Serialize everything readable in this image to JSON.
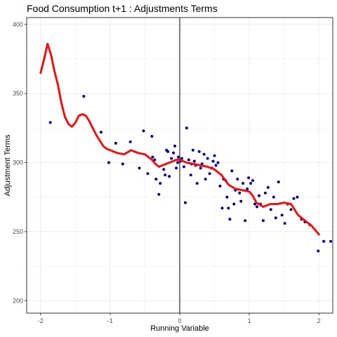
{
  "chart_data": {
    "type": "scatter",
    "title": "Food Consumption t+1 : Adjustments Terms",
    "xlabel": "Running Variable",
    "ylabel": "Adjustment Terms",
    "xlim": [
      -2.2,
      2.2
    ],
    "ylim": [
      191,
      405
    ],
    "x_ticks": [
      -2,
      -1,
      0,
      1,
      2
    ],
    "x_tick_labels": [
      "-2",
      "-1",
      "0",
      "1",
      "2"
    ],
    "y_ticks": [
      200,
      250,
      300,
      350,
      400
    ],
    "y_tick_labels": [
      "200",
      "250",
      "300",
      "350",
      "400"
    ],
    "grid": true,
    "cutoff_x": 0,
    "colors": {
      "points": "#00008b",
      "smooth": "#ee1111",
      "cutoff": "#000000",
      "grid": "#ebebeb",
      "frame": "#333333"
    },
    "series": [
      {
        "kind": "points",
        "x": [
          -1.86,
          -1.38,
          -1.13,
          -1.02,
          -0.92,
          -0.82,
          -0.71,
          -0.58,
          -0.52,
          -0.46,
          -0.4,
          -0.39,
          -0.36,
          -0.34,
          -0.3,
          -0.28,
          -0.23,
          -0.21,
          -0.19,
          -0.17,
          -0.15,
          -0.12,
          -0.09,
          -0.07,
          -0.05,
          -0.03,
          -0.02,
          0.01,
          0.03,
          0.06,
          0.08,
          0.1,
          0.13,
          0.16,
          0.17,
          0.19,
          0.21,
          0.23,
          0.25,
          0.28,
          0.3,
          0.32,
          0.35,
          0.37,
          0.4,
          0.43,
          0.46,
          0.48,
          0.5,
          0.52,
          0.55,
          0.58,
          0.61,
          0.63,
          0.66,
          0.68,
          0.7,
          0.72,
          0.75,
          0.78,
          0.8,
          0.83,
          0.86,
          0.88,
          0.91,
          0.94,
          0.97,
          0.99,
          1.02,
          1.05,
          1.08,
          1.11,
          1.14,
          1.16,
          1.2,
          1.23,
          1.27,
          1.31,
          1.35,
          1.38,
          1.42,
          1.47,
          1.51,
          1.55,
          1.6,
          1.64,
          1.69,
          1.75,
          1.8,
          1.87,
          1.99,
          2.07,
          2.17
        ],
        "y": [
          329,
          348,
          322,
          300,
          314,
          299,
          315,
          296,
          323,
          292,
          319,
          304,
          302,
          288,
          277,
          285,
          295,
          291,
          309,
          308,
          290,
          303,
          307,
          312,
          296,
          300,
          304,
          301,
          303,
          297,
          271,
          325,
          302,
          291,
          299,
          309,
          301,
          298,
          285,
          308,
          296,
          299,
          306,
          288,
          303,
          292,
          296,
          301,
          305,
          298,
          300,
          283,
          267,
          288,
          287,
          275,
          267,
          259,
          294,
          270,
          280,
          288,
          278,
          272,
          285,
          258,
          281,
          289,
          285,
          287,
          270,
          268,
          276,
          270,
          258,
          278,
          282,
          266,
          275,
          260,
          286,
          262,
          256,
          270,
          266,
          274,
          275,
          259,
          257,
          255,
          236,
          243,
          243
        ]
      },
      {
        "kind": "smooth",
        "x": [
          -2.0,
          -1.95,
          -1.9,
          -1.85,
          -1.8,
          -1.75,
          -1.7,
          -1.65,
          -1.6,
          -1.55,
          -1.5,
          -1.45,
          -1.4,
          -1.35,
          -1.3,
          -1.25,
          -1.2,
          -1.15,
          -1.1,
          -1.05,
          -1.0,
          -0.9,
          -0.8,
          -0.7,
          -0.6,
          -0.5,
          -0.45,
          -0.4,
          -0.35,
          -0.3,
          -0.25,
          -0.2,
          -0.15,
          -0.1,
          -0.05,
          0.0,
          0.05,
          0.1,
          0.2,
          0.3,
          0.4,
          0.5,
          0.6,
          0.7,
          0.8,
          0.9,
          1.0,
          1.05,
          1.1,
          1.2,
          1.3,
          1.4,
          1.5,
          1.6,
          1.65,
          1.7,
          1.8,
          1.9,
          2.0
        ],
        "y": [
          365,
          375,
          386,
          378,
          366,
          356,
          343,
          333,
          328,
          326,
          329,
          334,
          335,
          334,
          330,
          325,
          320,
          316,
          312,
          310,
          309,
          307,
          306,
          309,
          307,
          306,
          304,
          302,
          299,
          297,
          298,
          299,
          300,
          301,
          302,
          302,
          301,
          300,
          299,
          298,
          297,
          295,
          291,
          284,
          281,
          280,
          279,
          276,
          271,
          268,
          270,
          270,
          271,
          270,
          266,
          262,
          258,
          254,
          248
        ]
      }
    ]
  }
}
